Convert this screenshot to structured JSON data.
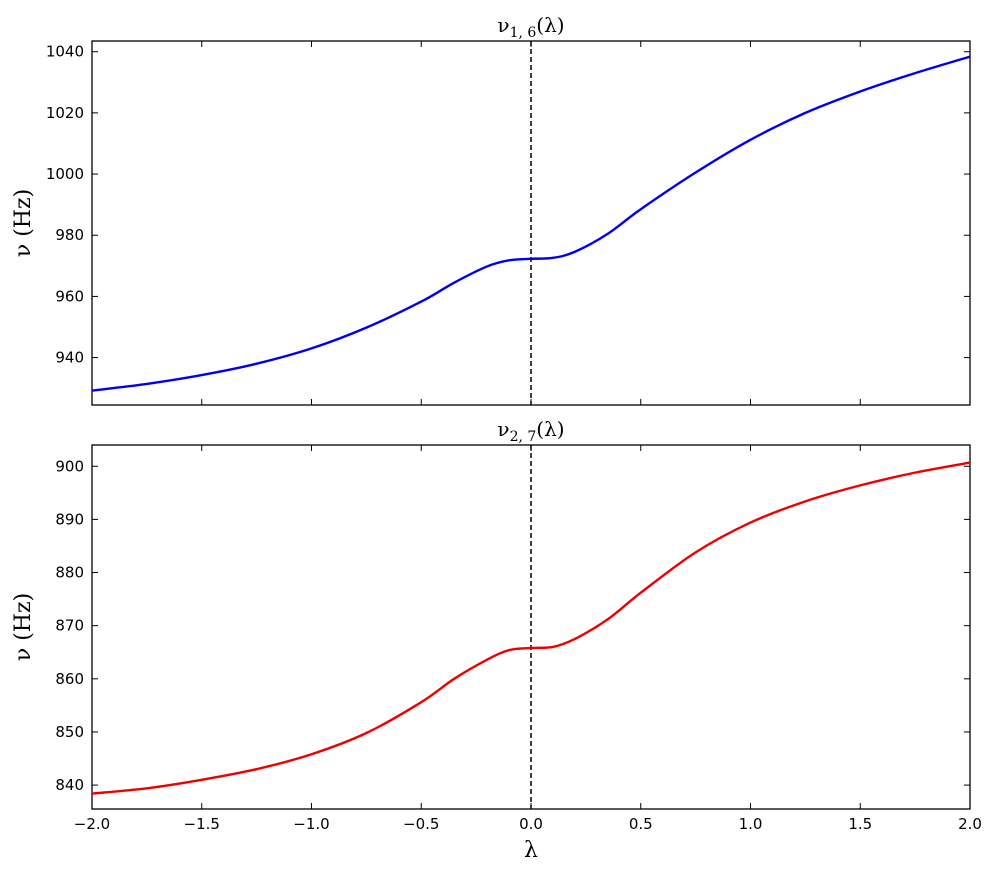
{
  "chart_data": [
    {
      "type": "line",
      "title": "ν₁,₆(λ)",
      "xlabel": "",
      "ylabel": "ν (Hz)",
      "xlim": [
        -2.0,
        2.0
      ],
      "ylim": [
        924.5,
        1043.5
      ],
      "x_ticks": [
        "−2.0",
        "−1.5",
        "−1.0",
        "−0.5",
        "0.0",
        "0.5",
        "1.0",
        "1.5",
        "2.0"
      ],
      "x_tick_values": [
        -2.0,
        -1.5,
        -1.0,
        -0.5,
        0.0,
        0.5,
        1.0,
        1.5,
        2.0
      ],
      "y_ticks": [
        "940",
        "960",
        "980",
        "1000",
        "1020",
        "1040"
      ],
      "y_tick_values": [
        940,
        960,
        980,
        1000,
        1020,
        1040
      ],
      "vertical_line": {
        "x": 0.0,
        "style": "dashed",
        "color": "#000000"
      },
      "series": [
        {
          "color": "#0000ee",
          "x": [
            -2.0,
            -1.75,
            -1.5,
            -1.25,
            -1.0,
            -0.75,
            -0.5,
            -0.35,
            -0.2,
            -0.1,
            0.0,
            0.1,
            0.2,
            0.35,
            0.5,
            0.75,
            1.0,
            1.25,
            1.5,
            1.75,
            2.0
          ],
          "y": [
            929.2,
            931.4,
            934.3,
            938.0,
            943.0,
            949.8,
            958.3,
            964.5,
            969.8,
            971.8,
            972.3,
            972.6,
            974.6,
            980.5,
            988.5,
            1000.5,
            1011.2,
            1020.0,
            1027.0,
            1033.0,
            1038.4
          ]
        }
      ]
    },
    {
      "type": "line",
      "title": "ν₂,₇(λ)",
      "xlabel": "λ",
      "ylabel": "ν (Hz)",
      "xlim": [
        -2.0,
        2.0
      ],
      "ylim": [
        835.5,
        904.0
      ],
      "x_ticks": [
        "−2.0",
        "−1.5",
        "−1.0",
        "−0.5",
        "0.0",
        "0.5",
        "1.0",
        "1.5",
        "2.0"
      ],
      "x_tick_values": [
        -2.0,
        -1.5,
        -1.0,
        -0.5,
        0.0,
        0.5,
        1.0,
        1.5,
        2.0
      ],
      "y_ticks": [
        "840",
        "850",
        "860",
        "870",
        "880",
        "890",
        "900"
      ],
      "y_tick_values": [
        840,
        850,
        860,
        870,
        880,
        890,
        900
      ],
      "vertical_line": {
        "x": 0.0,
        "style": "dashed",
        "color": "#000000"
      },
      "series": [
        {
          "color": "#ee0000",
          "x": [
            -2.0,
            -1.75,
            -1.5,
            -1.25,
            -1.0,
            -0.75,
            -0.5,
            -0.35,
            -0.2,
            -0.1,
            0.0,
            0.1,
            0.2,
            0.35,
            0.5,
            0.75,
            1.0,
            1.25,
            1.5,
            1.75,
            2.0
          ],
          "y": [
            838.4,
            839.4,
            841.0,
            843.0,
            845.8,
            849.8,
            855.6,
            860.0,
            863.6,
            865.4,
            865.8,
            866.0,
            867.5,
            871.2,
            876.2,
            883.8,
            889.4,
            893.4,
            896.4,
            898.8,
            900.7
          ]
        }
      ]
    }
  ]
}
